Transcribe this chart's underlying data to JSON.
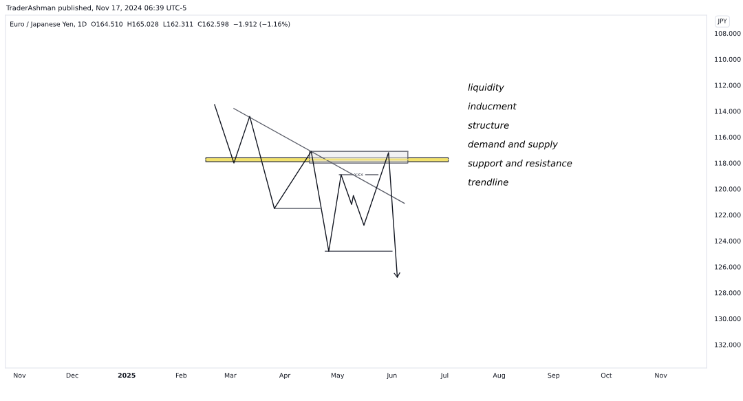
{
  "chart_data": {
    "type": "line",
    "title": "Euro / Japanese Yen, 1D  O164.510  H165.028  L162.311  C162.598  −1.912 (−1.16%)",
    "subtitle": "TraderAshman published, Nov 17, 2024 06:39 UTC-5",
    "ylabel": "JPY",
    "xlim": [
      "2024-10-24",
      "2025-11-27"
    ],
    "xticks": [
      {
        "value": "2024-11-01",
        "label": "Nov"
      },
      {
        "value": "2024-12-01",
        "label": "Dec"
      },
      {
        "value": "2025-01-01",
        "label": "2025"
      },
      {
        "value": "2025-02-01",
        "label": "Feb"
      },
      {
        "value": "2025-03-01",
        "label": "Mar"
      },
      {
        "value": "2025-04-01",
        "label": "Apr"
      },
      {
        "value": "2025-05-01",
        "label": "May"
      },
      {
        "value": "2025-06-01",
        "label": "Jun"
      },
      {
        "value": "2025-07-01",
        "label": "Jul"
      },
      {
        "value": "2025-08-01",
        "label": "Aug"
      },
      {
        "value": "2025-09-01",
        "label": "Sep"
      },
      {
        "value": "2025-10-01",
        "label": "Oct"
      },
      {
        "value": "2025-11-01",
        "label": "Nov"
      }
    ],
    "ylim": [
      133.8,
      106.6
    ],
    "yticks": [
      {
        "value": 108,
        "label": "108.000"
      },
      {
        "value": 110,
        "label": "110.000"
      },
      {
        "value": 112,
        "label": "112.000"
      },
      {
        "value": 114,
        "label": "114.000"
      },
      {
        "value": 116,
        "label": "116.000"
      },
      {
        "value": 118,
        "label": "118.000"
      },
      {
        "value": 120,
        "label": "120.000"
      },
      {
        "value": 122,
        "label": "122.000"
      },
      {
        "value": 124,
        "label": "124.000"
      },
      {
        "value": 126,
        "label": "126.000"
      },
      {
        "value": 128,
        "label": "128.000"
      },
      {
        "value": 130,
        "label": "130.000"
      },
      {
        "value": 132,
        "label": "132.000"
      }
    ],
    "series": [
      {
        "color": "#131722",
        "x": [
          "2025-02-20",
          "2025-03-03",
          "2025-03-12",
          "2025-03-26",
          "2025-04-16",
          "2025-04-26",
          "2025-05-03",
          "2025-05-09",
          "2025-05-10",
          "2025-05-16",
          "2025-05-30",
          "2025-06-04"
        ],
        "values": [
          113.5,
          118.0,
          114.4,
          121.5,
          117.1,
          124.8,
          118.9,
          121.2,
          120.5,
          122.8,
          117.2,
          126.8
        ]
      },
      {
        "color": "#f2e064",
        "x": [
          "2025-02-15",
          "2025-07-03"
        ],
        "values": [
          117.75,
          117.75
        ],
        "lower": [
          117.9,
          117.9
        ],
        "upper": [
          117.6,
          117.6
        ]
      },
      {
        "color": "#787b86",
        "x": [
          "2025-04-15",
          "2025-06-10"
        ],
        "values": [
          117.1,
          117.1
        ],
        "lower": [
          118.0,
          118.0
        ],
        "upper": [
          117.1,
          117.1
        ]
      },
      {
        "color": "#5d606b",
        "x": [
          "2025-03-03",
          "2025-06-08"
        ],
        "values": [
          113.8,
          121.1
        ]
      },
      {
        "color": "#5d606b",
        "x": [
          "2025-03-26",
          "2025-04-21"
        ],
        "values": [
          121.5,
          121.5
        ]
      },
      {
        "color": "#5d606b",
        "x": [
          "2025-04-24",
          "2025-06-01"
        ],
        "values": [
          124.8,
          124.8
        ]
      },
      {
        "color": "#5d606b",
        "x": [
          "2025-05-02",
          "2025-05-10",
          "2025-05-13",
          "2025-05-17",
          "2025-05-24"
        ],
        "values": [
          118.9,
          118.9,
          null,
          118.9,
          118.9
        ]
      }
    ],
    "annotations": [
      "liquidity",
      "inducment",
      "structure",
      "demand and supply",
      "support and resistance",
      "trendline",
      {
        "text": "xxx",
        "x": "2025-05-13",
        "y": 118.9
      }
    ]
  }
}
